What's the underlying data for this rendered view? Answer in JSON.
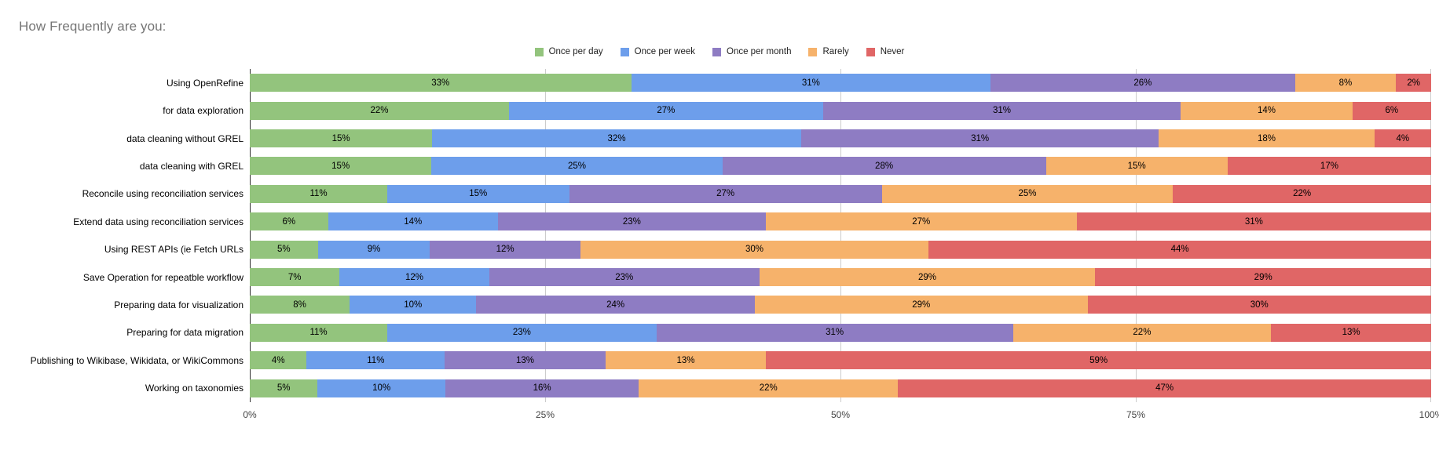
{
  "title": "How Frequently are you:",
  "legend": [
    {
      "label": "Once per day",
      "color": "#93c47d"
    },
    {
      "label": "Once per week",
      "color": "#6d9eeb"
    },
    {
      "label": "Once per month",
      "color": "#8e7cc3"
    },
    {
      "label": "Rarely",
      "color": "#f6b26b"
    },
    {
      "label": "Never",
      "color": "#e06666"
    }
  ],
  "chart_data": {
    "type": "bar",
    "orientation": "horizontal",
    "stacked": true,
    "title": "How Frequently are you:",
    "legend_position": "top",
    "grid": true,
    "xlim": [
      0,
      100
    ],
    "x_ticks": [
      "0%",
      "25%",
      "50%",
      "75%",
      "100%"
    ],
    "x_tick_values": [
      0,
      25,
      50,
      75,
      100
    ],
    "categories": [
      "Using OpenRefine",
      "for data exploration",
      "data cleaning without GREL",
      "data cleaning with GREL",
      "Reconcile using reconciliation services",
      "Extend data using reconciliation services",
      "Using REST APIs (ie Fetch URLs",
      "Save Operation for repeatble workflow",
      "Preparing data for visualization",
      "Preparing for data migration",
      "Publishing to Wikibase, Wikidata, or WikiCommons",
      "Working on taxonomies"
    ],
    "series": [
      {
        "name": "Once per day",
        "color": "#93c47d",
        "values": [
          33,
          22,
          15,
          15,
          11,
          6,
          5,
          7,
          8,
          11,
          4,
          5
        ]
      },
      {
        "name": "Once per week",
        "color": "#6d9eeb",
        "values": [
          31,
          27,
          32,
          25,
          15,
          14,
          9,
          12,
          10,
          23,
          11,
          10
        ]
      },
      {
        "name": "Once per month",
        "color": "#8e7cc3",
        "values": [
          26,
          31,
          31,
          28,
          27,
          23,
          12,
          23,
          24,
          31,
          13,
          16
        ]
      },
      {
        "name": "Rarely",
        "color": "#f6b26b",
        "values": [
          8,
          14,
          18,
          15,
          25,
          27,
          30,
          29,
          29,
          22,
          13,
          22
        ]
      },
      {
        "name": "Never",
        "color": "#e06666",
        "values": [
          2,
          6,
          4,
          17,
          22,
          31,
          44,
          29,
          30,
          13,
          59,
          47
        ]
      }
    ],
    "value_label_format": "{value}%"
  },
  "colors": {
    "title_text": "#757575",
    "gridline": "#cccccc",
    "baseline": "#333333",
    "axis_text": "#444444",
    "segment_label": "#000000"
  }
}
